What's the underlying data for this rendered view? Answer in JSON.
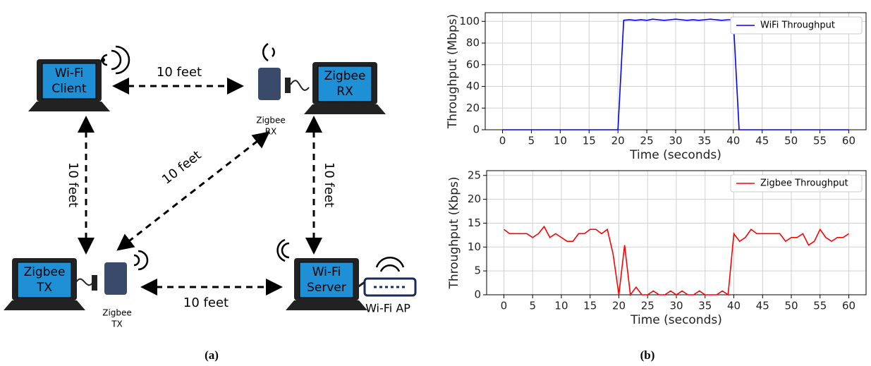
{
  "diagram": {
    "nodes": [
      {
        "label": [
          "Wi-Fi",
          "Client"
        ]
      },
      {
        "label": [
          "Zigbee",
          "RX"
        ]
      },
      {
        "label": [
          "Zigbee",
          "TX"
        ]
      },
      {
        "label": [
          "Wi-Fi",
          "Server"
        ]
      }
    ],
    "devices": [
      {
        "label": [
          "Zigbee",
          "RX"
        ]
      },
      {
        "label": [
          "Zigbee",
          "TX"
        ]
      },
      {
        "label": [
          "Wi-Fi AP"
        ]
      }
    ],
    "edges": [
      {
        "label": "10 feet"
      },
      {
        "label": "10 feet"
      },
      {
        "label": "10 feet"
      },
      {
        "label": "10 feet"
      },
      {
        "label": "10 feet"
      }
    ]
  },
  "captions": [
    "(a)",
    "(b)"
  ],
  "chart_data": [
    {
      "type": "line",
      "ylabel": "Throughput (Mbps)",
      "xlabel": "Time (seconds)",
      "x": [
        0,
        1,
        2,
        3,
        4,
        5,
        6,
        7,
        8,
        9,
        10,
        11,
        12,
        13,
        14,
        15,
        16,
        17,
        18,
        19,
        20,
        21,
        22,
        23,
        24,
        25,
        26,
        27,
        28,
        29,
        30,
        31,
        32,
        33,
        34,
        35,
        36,
        37,
        38,
        39,
        40,
        41,
        42,
        43,
        44,
        45,
        46,
        47,
        48,
        49,
        50,
        51,
        52,
        53,
        54,
        55,
        56,
        57,
        58,
        59,
        60
      ],
      "series": [
        {
          "name": "WiFi Throughput",
          "color": "#0000ff",
          "values": [
            0,
            0,
            0,
            0,
            0,
            0,
            0,
            0,
            0,
            0,
            0,
            0,
            0,
            0,
            0,
            0,
            0,
            0,
            0,
            0,
            0,
            101,
            101.5,
            101,
            101.5,
            101,
            102,
            101.5,
            101,
            101.5,
            102,
            101.5,
            101,
            101.5,
            101,
            101.5,
            102,
            101.5,
            101,
            101.5,
            101.5,
            0,
            0,
            0,
            0,
            0,
            0,
            0,
            0,
            0,
            0,
            0,
            0,
            0,
            0,
            0,
            0,
            0,
            0,
            0,
            0
          ]
        }
      ],
      "xlim": [
        -3,
        63
      ],
      "ylim": [
        0,
        108
      ],
      "xticks": [
        0,
        5,
        10,
        15,
        20,
        25,
        30,
        35,
        40,
        45,
        50,
        55,
        60
      ],
      "yticks": [
        0,
        20,
        40,
        60,
        80,
        100
      ],
      "grid": true,
      "legend": "upper-right"
    },
    {
      "type": "line",
      "ylabel": "Throughput (Kbps)",
      "xlabel": "Time (seconds)",
      "x": [
        0,
        1,
        2,
        3,
        4,
        5,
        6,
        7,
        8,
        9,
        10,
        11,
        12,
        13,
        14,
        15,
        16,
        17,
        18,
        19,
        20,
        21,
        22,
        23,
        24,
        25,
        26,
        27,
        28,
        29,
        30,
        31,
        32,
        33,
        34,
        35,
        36,
        37,
        38,
        39,
        40,
        41,
        42,
        43,
        44,
        45,
        46,
        47,
        48,
        49,
        50,
        51,
        52,
        53,
        54,
        55,
        56,
        57,
        58,
        59,
        60
      ],
      "series": [
        {
          "name": "Zigbee Throughput",
          "color": "#ff0000",
          "values": [
            13.7,
            12.8,
            12.8,
            12.8,
            12.8,
            12.0,
            12.8,
            14.3,
            12.0,
            12.8,
            12.0,
            11.2,
            11.2,
            12.8,
            12.8,
            13.7,
            13.7,
            12.8,
            13.7,
            8.5,
            0,
            10.4,
            0,
            1.6,
            0,
            0,
            0.8,
            0,
            0,
            0.8,
            0,
            0.8,
            0,
            0,
            0.8,
            0,
            0,
            0,
            0.8,
            0,
            12.8,
            11.2,
            12.0,
            13.7,
            12.8,
            12.8,
            12.8,
            12.8,
            12.8,
            11.2,
            12.0,
            12.0,
            12.8,
            10.4,
            11.2,
            13.7,
            12.0,
            11.2,
            12.0,
            12.0,
            12.8
          ]
        }
      ],
      "xlim": [
        -3,
        63
      ],
      "ylim": [
        0,
        26
      ],
      "xticks": [
        0,
        5,
        10,
        15,
        20,
        25,
        30,
        35,
        40,
        45,
        50,
        55,
        60
      ],
      "yticks": [
        0,
        5,
        10,
        15,
        20,
        25
      ],
      "grid": true,
      "legend": "upper-right"
    }
  ]
}
